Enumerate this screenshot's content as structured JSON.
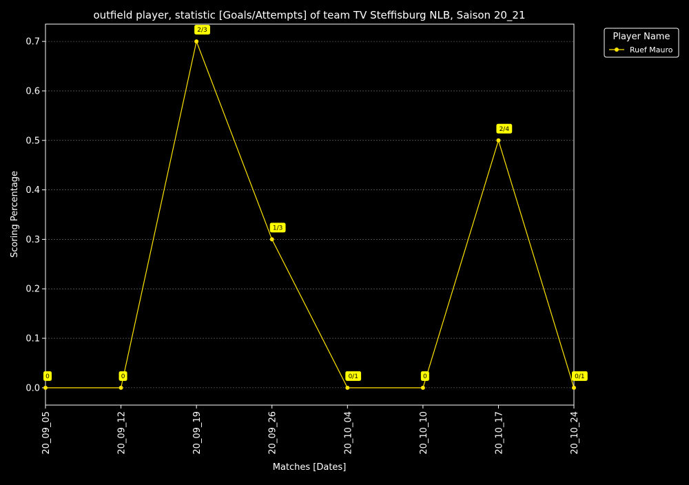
{
  "chart_data": {
    "type": "line",
    "title": "outfield player, statistic [Goals/Attempts] of team TV Steffisburg NLB, Saison 20_21",
    "xlabel": "Matches [Dates]",
    "ylabel": "Scoring Percentage",
    "categories": [
      "20_09_05",
      "20_09_12",
      "20_09_19",
      "20_09_26",
      "20_10_04",
      "20_10_10",
      "20_10_17",
      "20_10_24"
    ],
    "series": [
      {
        "name": "Ruef Mauro",
        "color": "#ffe600",
        "values": [
          0,
          0,
          0.7,
          0.3,
          0,
          0,
          0.5,
          0
        ],
        "labels": [
          "0",
          "0",
          "2/3",
          "1/3",
          "0/1",
          "0",
          "2/4",
          "0/1"
        ]
      }
    ],
    "yticks": [
      0.0,
      0.1,
      0.2,
      0.3,
      0.4,
      0.5,
      0.6,
      0.7
    ],
    "ytick_labels": [
      "0.0",
      "0.1",
      "0.2",
      "0.3",
      "0.4",
      "0.5",
      "0.6",
      "0.7"
    ],
    "ylim": [
      -0.035,
      0.735
    ],
    "grid": true,
    "legend": {
      "title": "Player Name",
      "placement": "outside-top-right"
    },
    "colors": {
      "background": "#000000",
      "axes": "#ffffff",
      "text": "#ffffff",
      "grid": "#808080",
      "label_box": "#ffff00",
      "label_text": "#000000"
    }
  }
}
